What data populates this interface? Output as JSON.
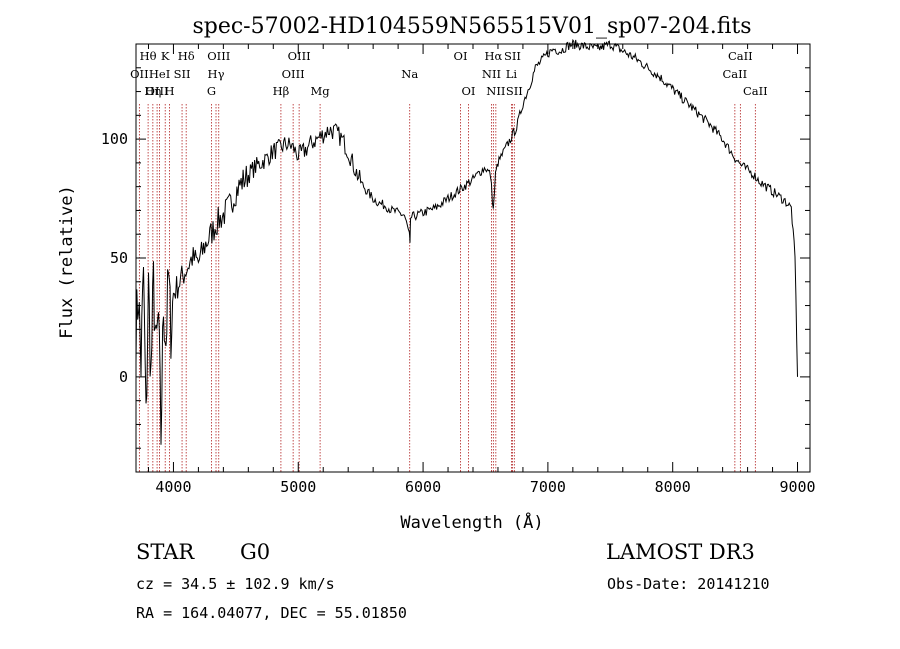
{
  "chart_data": {
    "type": "line",
    "title": "spec-57002-HD104559N565515V01_sp07-204.fits",
    "xlabel": "Wavelength (Å)",
    "ylabel": "Flux (relative)",
    "xlim": [
      3700,
      9100
    ],
    "ylim": [
      -40,
      140
    ],
    "x_ticks": [
      4000,
      5000,
      6000,
      7000,
      8000,
      9000
    ],
    "y_ticks": [
      0,
      50,
      100
    ],
    "series": [
      {
        "name": "flux",
        "x": [
          3700,
          3720,
          3740,
          3760,
          3780,
          3800,
          3820,
          3840,
          3860,
          3880,
          3900,
          3920,
          3940,
          3960,
          3980,
          4000,
          4050,
          4100,
          4150,
          4200,
          4250,
          4300,
          4350,
          4400,
          4450,
          4500,
          4550,
          4600,
          4650,
          4700,
          4750,
          4800,
          4850,
          4900,
          4950,
          5000,
          5050,
          5100,
          5150,
          5200,
          5250,
          5300,
          5350,
          5400,
          5450,
          5500,
          5550,
          5600,
          5650,
          5700,
          5750,
          5800,
          5850,
          5890,
          5895,
          5900,
          5950,
          6000,
          6050,
          6100,
          6150,
          6200,
          6250,
          6300,
          6350,
          6400,
          6450,
          6500,
          6540,
          6563,
          6580,
          6600,
          6650,
          6700,
          6750,
          6800,
          6850,
          6900,
          6950,
          7000,
          7050,
          7100,
          7150,
          7200,
          7300,
          7400,
          7500,
          7600,
          7700,
          7800,
          7900,
          8000,
          8100,
          8200,
          8300,
          8400,
          8500,
          8550,
          8600,
          8650,
          8700,
          8750,
          8800,
          8850,
          8900,
          8950,
          8980,
          9000
        ],
        "values": [
          20,
          35,
          5,
          45,
          -20,
          38,
          0,
          40,
          10,
          25,
          -25,
          30,
          15,
          42,
          20,
          35,
          40,
          45,
          50,
          48,
          55,
          60,
          65,
          68,
          72,
          78,
          82,
          85,
          88,
          90,
          92,
          95,
          96,
          98,
          97,
          93,
          95,
          98,
          100,
          102,
          104,
          103,
          100,
          95,
          88,
          82,
          78,
          75,
          73,
          72,
          70,
          69,
          68,
          60,
          55,
          67,
          68,
          69,
          70,
          71,
          73,
          75,
          77,
          79,
          81,
          83,
          86,
          88,
          85,
          70,
          85,
          90,
          95,
          100,
          105,
          115,
          122,
          130,
          133,
          136,
          138,
          137,
          139,
          140,
          139,
          138,
          140,
          137,
          134,
          130,
          126,
          121,
          116,
          111,
          106,
          100,
          92,
          89,
          87,
          85,
          82,
          80,
          78,
          76,
          74,
          71,
          50,
          0
        ]
      }
    ],
    "lines": [
      {
        "label": "Hθ",
        "x": 3797
      },
      {
        "label": "OII",
        "x": 3727
      },
      {
        "label": "OIII",
        "x": 3869
      },
      {
        "label": "K",
        "x": 3934
      },
      {
        "label": "HeI",
        "x": 3889
      },
      {
        "label": "Hη",
        "x": 3835
      },
      {
        "label": "H",
        "x": 3969
      },
      {
        "label": "Hδ",
        "x": 4102
      },
      {
        "label": "SII",
        "x": 4069
      },
      {
        "label": "OIII",
        "x": 4363
      },
      {
        "label": "Hγ",
        "x": 4341
      },
      {
        "label": "G",
        "x": 4305
      },
      {
        "label": "Hβ",
        "x": 4861
      },
      {
        "label": "OIII",
        "x": 5007
      },
      {
        "label": "OIII",
        "x": 4959
      },
      {
        "label": "Mg",
        "x": 5175
      },
      {
        "label": "Na",
        "x": 5893
      },
      {
        "label": "OI",
        "x": 6300
      },
      {
        "label": "OI",
        "x": 6364
      },
      {
        "label": "Hα",
        "x": 6563
      },
      {
        "label": "NII",
        "x": 6548
      },
      {
        "label": "NII",
        "x": 6583
      },
      {
        "label": "SII",
        "x": 6716
      },
      {
        "label": "SII",
        "x": 6731
      },
      {
        "label": "Li",
        "x": 6708
      },
      {
        "label": "CaII",
        "x": 8542
      },
      {
        "label": "CaII",
        "x": 8498
      },
      {
        "label": "CaII",
        "x": 8662
      }
    ]
  },
  "info": {
    "class": "STAR",
    "subclass": "G0",
    "survey": "LAMOST DR3",
    "cz": "cz = 34.5 ± 102.9 km/s",
    "obs_date": "Obs-Date: 20141210",
    "radec": "RA = 164.04077, DEC =  55.01850"
  },
  "colors": {
    "axes": "#000000",
    "spectrum": "#000000",
    "line_markers": "#b22222"
  }
}
